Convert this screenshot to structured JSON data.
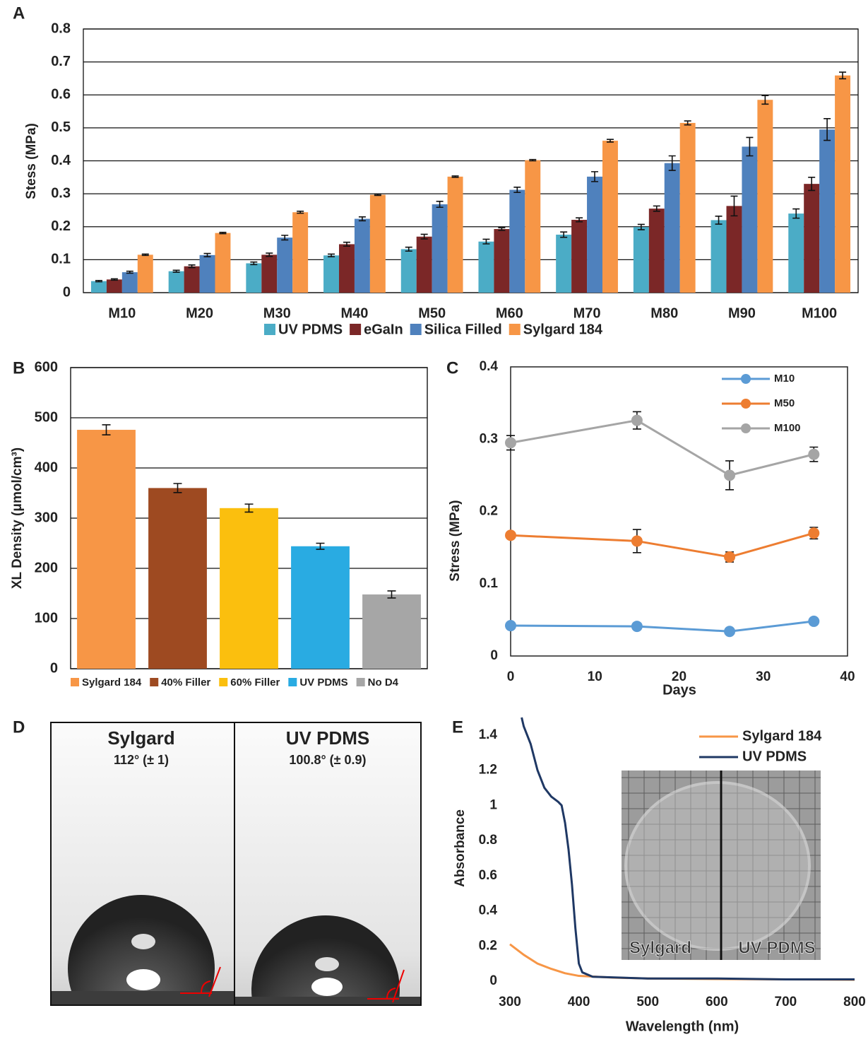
{
  "chart_data": [
    {
      "type": "bar",
      "panel": "A",
      "y_label": "Stess (MPa)",
      "categories": [
        "M10",
        "M20",
        "M30",
        "M40",
        "M50",
        "M60",
        "M70",
        "M80",
        "M90",
        "M100"
      ],
      "series": [
        {
          "name": "UV PDMS",
          "color": "#4bacc6",
          "values": [
            0.035,
            0.065,
            0.089,
            0.113,
            0.132,
            0.155,
            0.176,
            0.199,
            0.22,
            0.24
          ],
          "errors": [
            0.002,
            0.003,
            0.004,
            0.004,
            0.006,
            0.007,
            0.008,
            0.008,
            0.012,
            0.014
          ]
        },
        {
          "name": "eGaIn",
          "color": "#7b2727",
          "values": [
            0.04,
            0.08,
            0.115,
            0.147,
            0.17,
            0.193,
            0.221,
            0.255,
            0.263,
            0.33
          ],
          "errors": [
            0.002,
            0.004,
            0.005,
            0.006,
            0.007,
            0.004,
            0.006,
            0.008,
            0.03,
            0.02
          ]
        },
        {
          "name": "Silica Filled",
          "color": "#4f81bd",
          "values": [
            0.062,
            0.114,
            0.167,
            0.224,
            0.268,
            0.312,
            0.352,
            0.393,
            0.443,
            0.495
          ],
          "errors": [
            0.003,
            0.005,
            0.007,
            0.006,
            0.009,
            0.008,
            0.015,
            0.022,
            0.028,
            0.033
          ]
        },
        {
          "name": "Sylgard 184",
          "color": "#f79646",
          "values": [
            0.115,
            0.181,
            0.244,
            0.297,
            0.352,
            0.402,
            0.461,
            0.515,
            0.585,
            0.659
          ],
          "errors": [
            0.002,
            0.002,
            0.003,
            0.002,
            0.002,
            0.002,
            0.004,
            0.006,
            0.013,
            0.01
          ]
        }
      ],
      "ylim": [
        0,
        0.8
      ],
      "yticks": [
        0,
        0.1,
        0.2,
        0.3,
        0.4,
        0.5,
        0.6,
        0.7,
        0.8
      ],
      "grid": true,
      "legend": "bottom"
    },
    {
      "type": "bar",
      "panel": "B",
      "y_label": "XL Density (μmol/cm³)",
      "categories": [
        "Sylgard 184",
        "40% Filler",
        "60% Filler",
        "UV PDMS",
        "No D4"
      ],
      "values": [
        476,
        360,
        320,
        244,
        148
      ],
      "errors": [
        10,
        9,
        8,
        6,
        7
      ],
      "colors": [
        "#f79646",
        "#9e4a21",
        "#fbbf0e",
        "#29abe2",
        "#a6a6a6"
      ],
      "ylim": [
        0,
        600
      ],
      "yticks": [
        0,
        100,
        200,
        300,
        400,
        500,
        600
      ],
      "grid": true,
      "legend": "bottom"
    },
    {
      "type": "line",
      "panel": "C",
      "x_label": "Days",
      "y_label": "Stress (MPa)",
      "x": [
        0,
        15,
        26,
        36
      ],
      "series": [
        {
          "name": "M10",
          "color": "#5b9bd5",
          "values": [
            0.042,
            0.041,
            0.034,
            0.048
          ]
        },
        {
          "name": "M50",
          "color": "#ed7d31",
          "values": [
            0.167,
            0.159,
            0.137,
            0.17
          ],
          "errors": [
            0.003,
            0.016,
            0.007,
            0.008
          ]
        },
        {
          "name": "M100",
          "color": "#a5a5a5",
          "values": [
            0.295,
            0.326,
            0.25,
            0.279
          ],
          "errors": [
            0.01,
            0.012,
            0.02,
            0.01
          ]
        }
      ],
      "xlim": [
        0,
        40
      ],
      "xticks": [
        0,
        10,
        20,
        30,
        40
      ],
      "ylim": [
        0,
        0.4
      ],
      "yticks": [
        0,
        0.1,
        0.2,
        0.3,
        0.4
      ],
      "markers": true,
      "legend": "top-right"
    },
    {
      "type": "line",
      "panel": "E",
      "x_label": "Wavelength (nm)",
      "y_label": "Absorbance",
      "series": [
        {
          "name": "Sylgard 184",
          "color": "#f79646",
          "x": [
            300,
            320,
            340,
            360,
            380,
            400,
            450,
            500,
            600,
            700,
            800
          ],
          "values": [
            0.21,
            0.15,
            0.1,
            0.07,
            0.045,
            0.03,
            0.02,
            0.015,
            0.012,
            0.01,
            0.008
          ]
        },
        {
          "name": "UV PDMS",
          "color": "#1f3864",
          "x": [
            317,
            320,
            330,
            340,
            350,
            360,
            370,
            375,
            380,
            385,
            390,
            395,
            400,
            405,
            420,
            500,
            600,
            700,
            800
          ],
          "values": [
            1.5,
            1.45,
            1.35,
            1.2,
            1.1,
            1.05,
            1.02,
            1.0,
            0.9,
            0.75,
            0.55,
            0.3,
            0.1,
            0.05,
            0.025,
            0.015,
            0.015,
            0.01,
            0.01
          ]
        }
      ],
      "xlim": [
        300,
        800
      ],
      "xticks": [
        300,
        400,
        500,
        600,
        700,
        800
      ],
      "ylim": [
        0,
        1.5
      ],
      "yticks": [
        0,
        0.2,
        0.4,
        0.6,
        0.8,
        1,
        1.2,
        1.4
      ],
      "legend": "top-right",
      "inset_labels": [
        "Sylgard",
        "UV PDMS"
      ]
    }
  ],
  "contact_angle": {
    "panel": "D",
    "images": [
      {
        "title": "Sylgard",
        "angle": "112° (± 1)"
      },
      {
        "title": "UV PDMS",
        "angle": "100.8° (± 0.9)"
      }
    ]
  }
}
